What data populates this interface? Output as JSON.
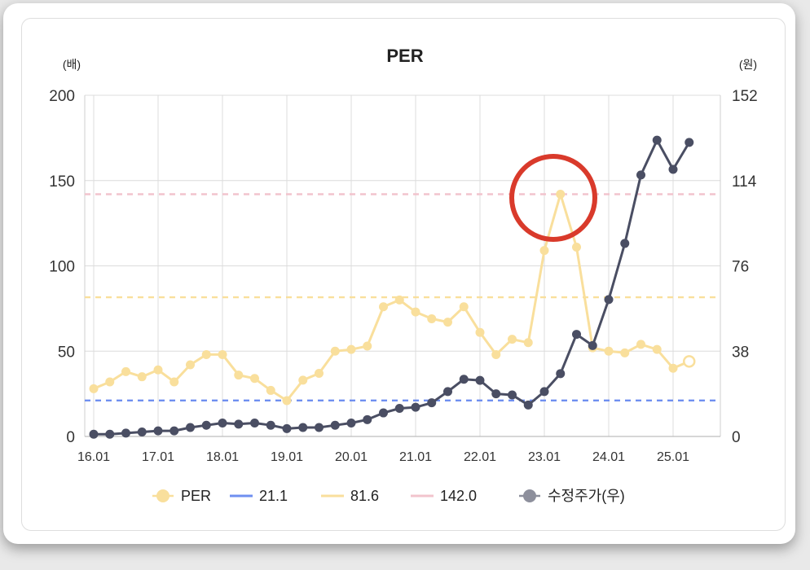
{
  "chart_data": {
    "type": "line",
    "title": "PER",
    "left_unit": "(배)",
    "right_unit": "(원)",
    "y_left_ticks": [
      "0",
      "50",
      "100",
      "150",
      "200"
    ],
    "y_left_range": [
      0,
      200
    ],
    "y_right_ticks": [
      "0",
      "38",
      "76",
      "114",
      "152"
    ],
    "y_right_range": [
      0,
      152
    ],
    "x_ticks": [
      "16.01",
      "17.01",
      "18.01",
      "19.01",
      "20.01",
      "21.01",
      "22.01",
      "23.01",
      "24.01",
      "25.01"
    ],
    "grid": true,
    "legend_position": "bottom",
    "annotation": "red circle around the PER peak near 23.04",
    "series": [
      {
        "name": "PER",
        "axis": "left",
        "color": "#f9df9c",
        "x": [
          "16.01",
          "16.04",
          "16.07",
          "16.10",
          "17.01",
          "17.04",
          "17.07",
          "17.10",
          "18.01",
          "18.04",
          "18.07",
          "18.10",
          "19.01",
          "19.04",
          "19.07",
          "19.10",
          "20.01",
          "20.04",
          "20.07",
          "20.10",
          "21.01",
          "21.04",
          "21.07",
          "21.10",
          "22.01",
          "22.04",
          "22.07",
          "22.10",
          "23.01",
          "23.04",
          "23.07",
          "23.10",
          "24.01",
          "24.04",
          "24.07",
          "24.10",
          "25.01",
          "25.04"
        ],
        "values": [
          28,
          32,
          38,
          35,
          39,
          32,
          42,
          48,
          48,
          36,
          34,
          27,
          21,
          33,
          37,
          50,
          51,
          53,
          76,
          80,
          73,
          69,
          67,
          76,
          61,
          48,
          57,
          55,
          109,
          142,
          111,
          52,
          50,
          49,
          54,
          51,
          40,
          44
        ]
      },
      {
        "name": "수정주가(우)",
        "axis": "right",
        "color": "#4a4e63",
        "x": [
          "16.01",
          "16.04",
          "16.07",
          "16.10",
          "17.01",
          "17.04",
          "17.07",
          "17.10",
          "18.01",
          "18.04",
          "18.07",
          "18.10",
          "19.01",
          "19.04",
          "19.07",
          "19.10",
          "20.01",
          "20.04",
          "20.07",
          "20.10",
          "21.01",
          "21.04",
          "21.07",
          "21.10",
          "22.01",
          "22.04",
          "22.07",
          "22.10",
          "23.01",
          "23.04",
          "23.07",
          "23.10",
          "24.01",
          "24.04",
          "24.07",
          "24.10",
          "25.01",
          "25.04"
        ],
        "values": [
          1,
          1,
          1.5,
          2,
          2.5,
          2.5,
          4,
          5,
          6,
          5.5,
          6,
          5,
          3.5,
          4,
          4,
          5,
          6,
          7.5,
          10.5,
          12.5,
          13,
          15,
          20,
          25.5,
          25,
          19,
          18.5,
          14,
          20,
          28,
          45.5,
          40.5,
          61,
          86,
          116.5,
          132,
          119,
          131
        ]
      }
    ],
    "reference_lines": [
      {
        "name": "21.1",
        "value": 21.1,
        "color": "#6f8ff0",
        "axis": "left"
      },
      {
        "name": "81.6",
        "value": 81.6,
        "color": "#f9df9c",
        "axis": "left"
      },
      {
        "name": "142.0",
        "value": 142.0,
        "color": "#f2c4cd",
        "axis": "left"
      }
    ],
    "legend": [
      {
        "label": "PER",
        "style": "dot",
        "color": "#f9df9c"
      },
      {
        "label": "21.1",
        "style": "line",
        "color": "#6f8ff0"
      },
      {
        "label": "81.6",
        "style": "line",
        "color": "#f9df9c"
      },
      {
        "label": "142.0",
        "style": "line",
        "color": "#f2c4cd"
      },
      {
        "label": "수정주가(우)",
        "style": "dot",
        "color": "#8d8f9c"
      }
    ]
  }
}
